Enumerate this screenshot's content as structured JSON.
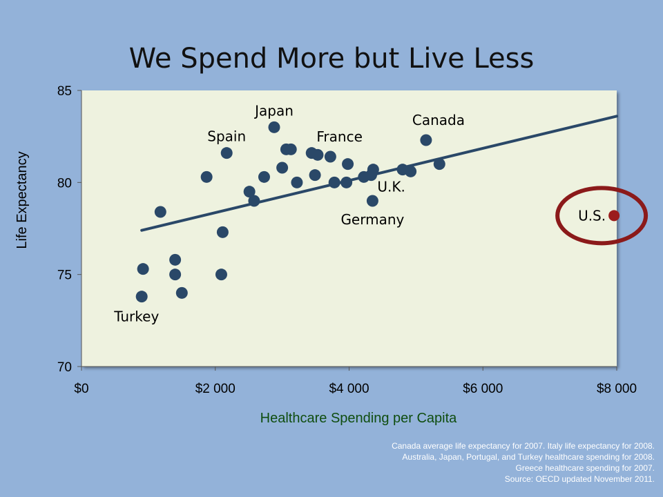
{
  "title": "We Spend More but Live Less",
  "footnote": [
    "Canada average life expectancy for 2007.  Italy life expectancy for 2008.",
    "Australia, Japan, Portugal, and Turkey healthcare spending for 2008.",
    "Greece healthcare spending for 2007.",
    "Source: OECD updated November 2011."
  ],
  "colors": {
    "background": "#93b2d9",
    "plot_area": "#eef2df",
    "point": "#2a4868",
    "trendline": "#2a4868",
    "highlight_point": "#9b1c1c",
    "highlight_ring": "#8b1a1a",
    "xlabel": "#0f4d0f"
  },
  "chart_data": {
    "type": "scatter",
    "title": "We Spend More but Live Less",
    "xlabel": "Healthcare Spending per Capita",
    "ylabel": "Life Expectancy",
    "xlim": [
      0,
      8000
    ],
    "ylim": [
      70,
      85
    ],
    "x_ticks": [
      0,
      2000,
      4000,
      6000,
      8000
    ],
    "x_tick_labels": [
      "$0",
      "$2 000",
      "$4 000",
      "$6 000",
      "$8 000"
    ],
    "y_ticks": [
      70,
      75,
      80,
      85
    ],
    "y_tick_labels": [
      "70",
      "75",
      "80",
      "85"
    ],
    "grid": false,
    "points": [
      {
        "x": 900,
        "y": 73.8
      },
      {
        "x": 920,
        "y": 75.3
      },
      {
        "x": 1180,
        "y": 78.4
      },
      {
        "x": 1400,
        "y": 75.8
      },
      {
        "x": 1400,
        "y": 75.0
      },
      {
        "x": 1500,
        "y": 74.0
      },
      {
        "x": 1870,
        "y": 80.3
      },
      {
        "x": 2090,
        "y": 75.0
      },
      {
        "x": 2110,
        "y": 77.3
      },
      {
        "x": 2170,
        "y": 81.6
      },
      {
        "x": 2510,
        "y": 79.5
      },
      {
        "x": 2580,
        "y": 79.0
      },
      {
        "x": 2730,
        "y": 80.3
      },
      {
        "x": 2880,
        "y": 83.0
      },
      {
        "x": 3000,
        "y": 80.8
      },
      {
        "x": 3060,
        "y": 81.8
      },
      {
        "x": 3130,
        "y": 81.8
      },
      {
        "x": 3220,
        "y": 80.0
      },
      {
        "x": 3440,
        "y": 81.6
      },
      {
        "x": 3490,
        "y": 80.4
      },
      {
        "x": 3530,
        "y": 81.5
      },
      {
        "x": 3720,
        "y": 81.4
      },
      {
        "x": 3780,
        "y": 80.0
      },
      {
        "x": 3960,
        "y": 80.0
      },
      {
        "x": 3980,
        "y": 81.0
      },
      {
        "x": 4220,
        "y": 80.3
      },
      {
        "x": 4330,
        "y": 80.4
      },
      {
        "x": 4360,
        "y": 80.7
      },
      {
        "x": 4350,
        "y": 79.0
      },
      {
        "x": 4800,
        "y": 80.7
      },
      {
        "x": 4920,
        "y": 80.6
      },
      {
        "x": 5150,
        "y": 82.3
      },
      {
        "x": 5350,
        "y": 81.0
      }
    ],
    "highlight": {
      "x": 7960,
      "y": 78.2,
      "label": "U.S."
    },
    "labels": [
      {
        "text": "Japan",
        "x": 2880,
        "y": 83.0,
        "pos": "above"
      },
      {
        "text": "Spain",
        "x": 2170,
        "y": 81.6,
        "pos": "above"
      },
      {
        "text": "France",
        "x": 3720,
        "y": 81.4,
        "pos": "above-right"
      },
      {
        "text": "Canada",
        "x": 5150,
        "y": 82.3,
        "pos": "above-right"
      },
      {
        "text": "U.K.",
        "x": 4360,
        "y": 80.7,
        "pos": "below-right"
      },
      {
        "text": "Germany",
        "x": 4350,
        "y": 79.0,
        "pos": "below"
      },
      {
        "text": "Turkey",
        "x": 900,
        "y": 73.8,
        "pos": "below-left"
      }
    ],
    "trendline": {
      "x1": 900,
      "y1": 77.4,
      "x2": 8000,
      "y2": 83.6
    }
  }
}
